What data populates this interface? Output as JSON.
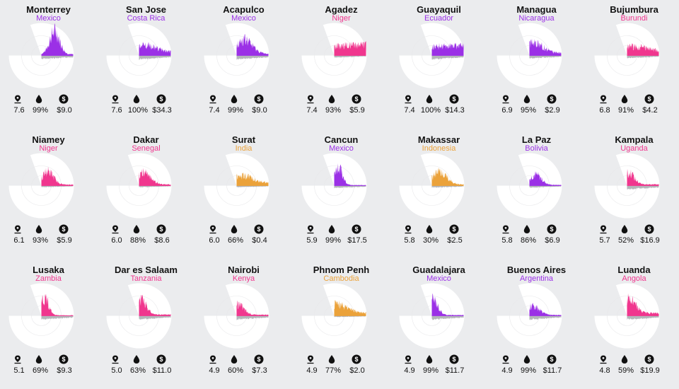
{
  "colors": {
    "Mexico": "#9b30e6",
    "Costa Rica": "#9b30e6",
    "Niger": "#f0368e",
    "Ecuador": "#9b30e6",
    "Nicaragua": "#9b30e6",
    "Burundi": "#f0368e",
    "Senegal": "#f0368e",
    "India": "#eba23a",
    "Indonesia": "#eba23a",
    "Bolivia": "#9b30e6",
    "Uganda": "#f0368e",
    "Zambia": "#f0368e",
    "Tanzania": "#f0368e",
    "Kenya": "#f0368e",
    "Cambodia": "#eba23a",
    "Argentina": "#9b30e6",
    "Angola": "#f0368e",
    "negative": "#b4b6ba",
    "disc": "#ffffff",
    "background": "#ebecee"
  },
  "icons": [
    "pin-icon",
    "drop-icon",
    "dollar-icon"
  ],
  "chart_data": [
    {
      "type": "area",
      "city": "Monterrey",
      "country": "Mexico",
      "stats": [
        "7.6",
        "99%",
        "$9.0"
      ],
      "peak": 0.9,
      "peak_pos": 0.42,
      "decay": 0.22,
      "pos_base": 0.05,
      "neg_level": 0.28
    },
    {
      "type": "area",
      "city": "San Jose",
      "country": "Costa Rica",
      "stats": [
        "7.6",
        "100%",
        "$34.3"
      ],
      "peak": 0.3,
      "peak_pos": 0.1,
      "decay": 0.6,
      "pos_base": 0.12,
      "neg_level": 0.3
    },
    {
      "type": "area",
      "city": "Acapulco",
      "country": "Mexico",
      "stats": [
        "7.4",
        "99%",
        "$9.0"
      ],
      "peak": 0.55,
      "peak_pos": 0.25,
      "decay": 0.35,
      "pos_base": 0.06,
      "neg_level": 0.3
    },
    {
      "type": "area",
      "city": "Agadez",
      "country": "Niger",
      "stats": [
        "7.4",
        "93%",
        "$5.9"
      ],
      "peak": 0.3,
      "peak_pos": 0.95,
      "decay": 2.0,
      "pos_base": 0.12,
      "neg_level": 0.15
    },
    {
      "type": "area",
      "city": "Guayaquil",
      "country": "Ecuador",
      "stats": [
        "7.4",
        "100%",
        "$14.3"
      ],
      "peak": 0.25,
      "peak_pos": 0.6,
      "decay": 1.5,
      "pos_base": 0.12,
      "neg_level": 0.3
    },
    {
      "type": "area",
      "city": "Managua",
      "country": "Nicaragua",
      "stats": [
        "6.9",
        "95%",
        "$2.9"
      ],
      "peak": 0.4,
      "peak_pos": 0.15,
      "decay": 0.4,
      "pos_base": 0.1,
      "neg_level": 0.22
    },
    {
      "type": "area",
      "city": "Bujumbura",
      "country": "Burundi",
      "stats": [
        "6.8",
        "91%",
        "$4.2"
      ],
      "peak": 0.25,
      "peak_pos": 0.2,
      "decay": 0.8,
      "pos_base": 0.1,
      "neg_level": 0.2
    },
    {
      "type": "area",
      "city": "Niamey",
      "country": "Niger",
      "stats": [
        "6.1",
        "93%",
        "$5.9"
      ],
      "peak": 0.5,
      "peak_pos": 0.2,
      "decay": 0.25,
      "pos_base": 0.04,
      "neg_level": 0.12
    },
    {
      "type": "area",
      "city": "Dakar",
      "country": "Senegal",
      "stats": [
        "6.0",
        "88%",
        "$8.6"
      ],
      "peak": 0.45,
      "peak_pos": 0.15,
      "decay": 0.3,
      "pos_base": 0.05,
      "neg_level": 0.12
    },
    {
      "type": "area",
      "city": "Surat",
      "country": "India",
      "stats": [
        "6.0",
        "66%",
        "$0.4"
      ],
      "peak": 0.3,
      "peak_pos": 0.15,
      "decay": 0.5,
      "pos_base": 0.1,
      "neg_level": 0.12
    },
    {
      "type": "area",
      "city": "Cancun",
      "country": "Mexico",
      "stats": [
        "5.9",
        "99%",
        "$17.5"
      ],
      "peak": 0.75,
      "peak_pos": 0.1,
      "decay": 0.2,
      "pos_base": 0.02,
      "neg_level": 0.18
    },
    {
      "type": "area",
      "city": "Makassar",
      "country": "Indonesia",
      "stats": [
        "5.8",
        "30%",
        "$2.5"
      ],
      "peak": 0.5,
      "peak_pos": 0.25,
      "decay": 0.3,
      "pos_base": 0.05,
      "neg_level": 0.15
    },
    {
      "type": "area",
      "city": "La Paz",
      "country": "Bolivia",
      "stats": [
        "5.8",
        "86%",
        "$6.9"
      ],
      "peak": 0.4,
      "peak_pos": 0.2,
      "decay": 0.25,
      "pos_base": 0.03,
      "neg_level": 0.15
    },
    {
      "type": "area",
      "city": "Kampala",
      "country": "Uganda",
      "stats": [
        "5.7",
        "52%",
        "$16.9"
      ],
      "peak": 0.45,
      "peak_pos": 0.05,
      "decay": 0.25,
      "pos_base": 0.05,
      "neg_level": 0.3
    },
    {
      "type": "area",
      "city": "Lusaka",
      "country": "Zambia",
      "stats": [
        "5.1",
        "69%",
        "$9.3"
      ],
      "peak": 0.65,
      "peak_pos": 0.1,
      "decay": 0.18,
      "pos_base": 0.02,
      "neg_level": 0.3
    },
    {
      "type": "area",
      "city": "Dar es Salaam",
      "country": "Tanzania",
      "stats": [
        "5.0",
        "63%",
        "$11.0"
      ],
      "peak": 0.55,
      "peak_pos": 0.1,
      "decay": 0.2,
      "pos_base": 0.05,
      "neg_level": 0.28
    },
    {
      "type": "area",
      "city": "Nairobi",
      "country": "Kenya",
      "stats": [
        "4.9",
        "60%",
        "$7.3"
      ],
      "peak": 0.4,
      "peak_pos": 0.05,
      "decay": 0.25,
      "pos_base": 0.04,
      "neg_level": 0.3
    },
    {
      "type": "area",
      "city": "Phnom Penh",
      "country": "Cambodia",
      "stats": [
        "4.9",
        "77%",
        "$2.0"
      ],
      "peak": 0.35,
      "peak_pos": 0.05,
      "decay": 0.5,
      "pos_base": 0.1,
      "neg_level": 0.1
    },
    {
      "type": "area",
      "city": "Guadalajara",
      "country": "Mexico",
      "stats": [
        "4.9",
        "99%",
        "$11.7"
      ],
      "peak": 0.6,
      "peak_pos": 0.05,
      "decay": 0.2,
      "pos_base": 0.03,
      "neg_level": 0.3
    },
    {
      "type": "area",
      "city": "Buenos Aires",
      "country": "Argentina",
      "stats": [
        "4.9",
        "99%",
        "$11.7"
      ],
      "peak": 0.35,
      "peak_pos": 0.1,
      "decay": 0.3,
      "pos_base": 0.03,
      "neg_level": 0.3
    },
    {
      "type": "area",
      "city": "Luanda",
      "country": "Angola",
      "stats": [
        "4.8",
        "59%",
        "$19.9"
      ],
      "peak": 0.55,
      "peak_pos": 0.05,
      "decay": 0.3,
      "pos_base": 0.1,
      "neg_level": 0.3
    }
  ]
}
